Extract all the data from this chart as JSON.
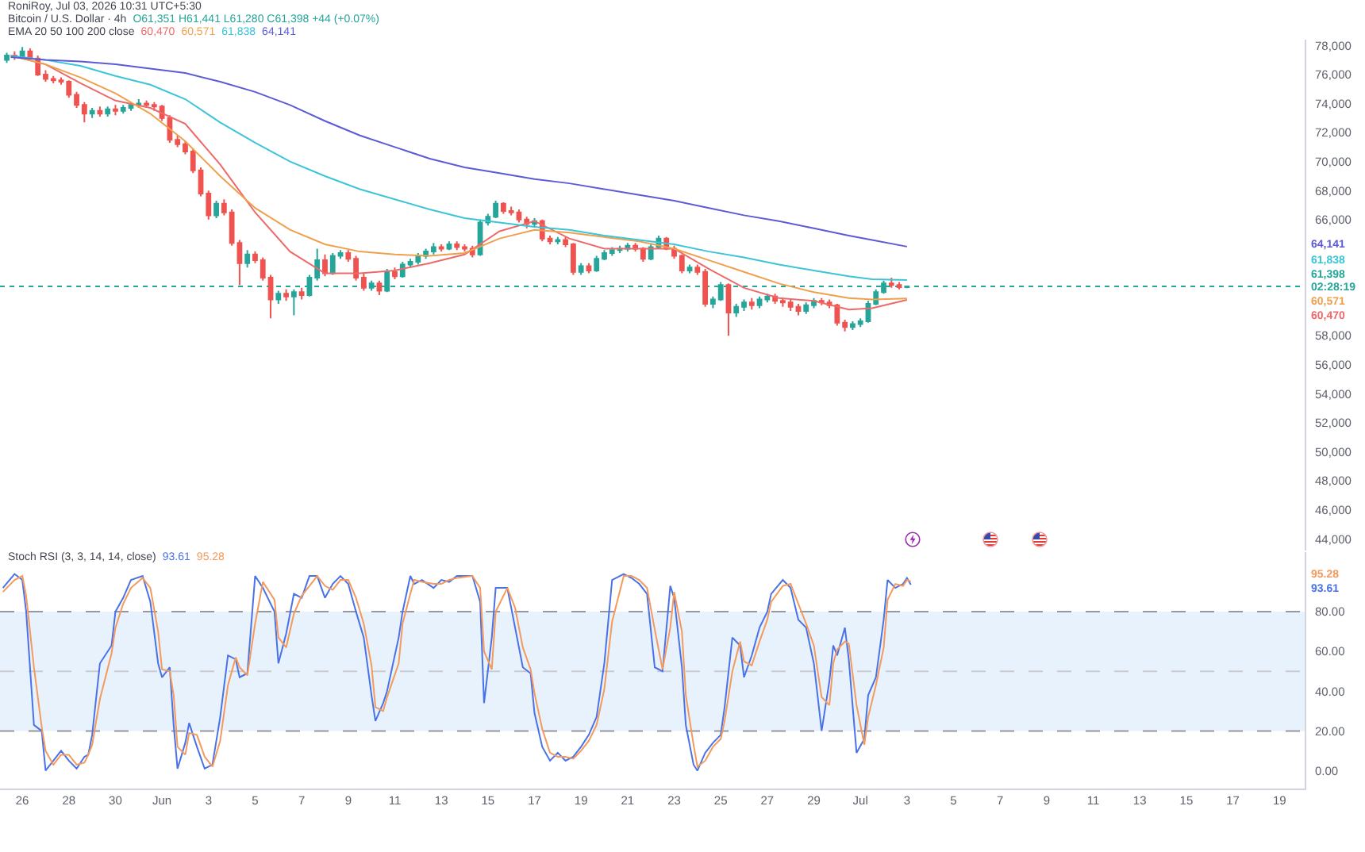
{
  "chart_data": [
    {
      "type": "candlestick",
      "title": "Bitcoin / U.S. Dollar · 4h",
      "subtitle": "O61,351 H61,441 L61,280 C61,398 +44 (+0.07%)",
      "legend_title": "EMA 20 50 100 200 close",
      "tick_labels": "y",
      "annotations": [
        "RoniRoy, Jul 03, 2026 10:31 UTC+5:30"
      ],
      "x": [
        "2026-05-25T08:00",
        "2026-05-25T16:00",
        "2026-05-26T00:00",
        "2026-05-26T08:00",
        "2026-05-26T16:00",
        "2026-05-27T00:00",
        "2026-05-27T08:00",
        "2026-05-27T16:00",
        "2026-05-28T00:00",
        "2026-05-28T08:00",
        "2026-05-28T16:00",
        "2026-05-29T00:00",
        "2026-05-29T08:00",
        "2026-05-29T16:00",
        "2026-05-30T00:00",
        "2026-05-30T08:00",
        "2026-05-30T16:00",
        "2026-05-31T00:00",
        "2026-05-31T08:00",
        "2026-05-31T16:00",
        "2026-06-01T00:00",
        "2026-06-01T08:00",
        "2026-06-01T16:00",
        "2026-06-02T00:00",
        "2026-06-02T08:00",
        "2026-06-02T16:00",
        "2026-06-03T00:00",
        "2026-06-03T08:00",
        "2026-06-03T16:00",
        "2026-06-04T00:00",
        "2026-06-04T08:00",
        "2026-06-04T16:00",
        "2026-06-05T00:00",
        "2026-06-05T08:00",
        "2026-06-05T16:00",
        "2026-06-06T00:00",
        "2026-06-06T08:00",
        "2026-06-06T16:00",
        "2026-06-07T00:00",
        "2026-06-07T08:00",
        "2026-06-07T16:00",
        "2026-06-08T00:00",
        "2026-06-08T08:00",
        "2026-06-08T16:00",
        "2026-06-09T00:00",
        "2026-06-09T08:00",
        "2026-06-09T16:00",
        "2026-06-10T00:00",
        "2026-06-10T08:00",
        "2026-06-10T16:00",
        "2026-06-11T00:00",
        "2026-06-11T08:00",
        "2026-06-11T16:00",
        "2026-06-12T00:00",
        "2026-06-12T08:00",
        "2026-06-12T16:00",
        "2026-06-13T00:00",
        "2026-06-13T08:00",
        "2026-06-13T16:00",
        "2026-06-14T00:00",
        "2026-06-14T08:00",
        "2026-06-14T16:00",
        "2026-06-15T00:00",
        "2026-06-15T08:00",
        "2026-06-15T16:00",
        "2026-06-16T00:00",
        "2026-06-16T08:00",
        "2026-06-16T16:00",
        "2026-06-17T00:00",
        "2026-06-17T08:00",
        "2026-06-17T16:00",
        "2026-06-18T00:00",
        "2026-06-18T08:00",
        "2026-06-18T16:00",
        "2026-06-19T00:00",
        "2026-06-19T08:00",
        "2026-06-19T16:00",
        "2026-06-20T00:00",
        "2026-06-20T08:00",
        "2026-06-20T16:00",
        "2026-06-21T00:00",
        "2026-06-21T08:00",
        "2026-06-21T16:00",
        "2026-06-22T00:00",
        "2026-06-22T08:00",
        "2026-06-22T16:00",
        "2026-06-23T00:00",
        "2026-06-23T08:00",
        "2026-06-23T16:00",
        "2026-06-24T00:00",
        "2026-06-24T08:00",
        "2026-06-24T16:00",
        "2026-06-25T00:00",
        "2026-06-25T08:00",
        "2026-06-25T16:00",
        "2026-06-26T00:00",
        "2026-06-26T08:00",
        "2026-06-26T16:00",
        "2026-06-27T00:00",
        "2026-06-27T08:00",
        "2026-06-27T16:00",
        "2026-06-28T00:00",
        "2026-06-28T08:00",
        "2026-06-28T16:00",
        "2026-06-29T00:00",
        "2026-06-29T08:00",
        "2026-06-29T16:00",
        "2026-06-30T00:00",
        "2026-06-30T08:00",
        "2026-06-30T16:00",
        "2026-07-01T00:00",
        "2026-07-01T08:00",
        "2026-07-01T16:00",
        "2026-07-02T00:00",
        "2026-07-02T08:00",
        "2026-07-02T16:00",
        "2026-07-03T00:00"
      ],
      "ohlc": [
        [
          77000,
          77500,
          76800,
          77300
        ],
        [
          77300,
          77600,
          77000,
          77200
        ],
        [
          77200,
          77900,
          77100,
          77600
        ],
        [
          77600,
          77800,
          77000,
          77100
        ],
        [
          77100,
          77300,
          75900,
          76000
        ],
        [
          76000,
          76300,
          75500,
          75700
        ],
        [
          75700,
          75900,
          75400,
          75600
        ],
        [
          75600,
          75800,
          75300,
          75500
        ],
        [
          75500,
          75600,
          74400,
          74600
        ],
        [
          74600,
          74800,
          73700,
          73900
        ],
        [
          73900,
          74100,
          72700,
          73300
        ],
        [
          73300,
          73700,
          73000,
          73500
        ],
        [
          73500,
          73800,
          73100,
          73300
        ],
        [
          73300,
          73800,
          73100,
          73600
        ],
        [
          73600,
          73900,
          73200,
          73500
        ],
        [
          73500,
          73900,
          73300,
          73700
        ],
        [
          73700,
          74100,
          73500,
          73900
        ],
        [
          73900,
          74300,
          73700,
          74000
        ],
        [
          74000,
          74200,
          73700,
          73900
        ],
        [
          73900,
          74100,
          73500,
          73800
        ],
        [
          73800,
          73900,
          72800,
          73000
        ],
        [
          73000,
          73200,
          71300,
          71500
        ],
        [
          71500,
          71800,
          71000,
          71200
        ],
        [
          71200,
          71400,
          70500,
          70700
        ],
        [
          70700,
          70900,
          69200,
          69400
        ],
        [
          69400,
          69600,
          67600,
          67800
        ],
        [
          67800,
          68000,
          66000,
          66300
        ],
        [
          66300,
          67300,
          66100,
          67100
        ],
        [
          67100,
          67400,
          66300,
          66500
        ],
        [
          66500,
          66700,
          64200,
          64400
        ],
        [
          64400,
          64600,
          61500,
          63000
        ],
        [
          63000,
          63900,
          62700,
          63600
        ],
        [
          63600,
          63800,
          63000,
          63200
        ],
        [
          63200,
          63400,
          61800,
          62000
        ],
        [
          62000,
          62200,
          59200,
          60500
        ],
        [
          60500,
          61100,
          60200,
          60900
        ],
        [
          60900,
          61200,
          60400,
          60700
        ],
        [
          60700,
          61200,
          59400,
          61000
        ],
        [
          61000,
          61300,
          60500,
          60800
        ],
        [
          60800,
          62200,
          60700,
          62000
        ],
        [
          62000,
          64000,
          61800,
          63200
        ],
        [
          63200,
          63600,
          62100,
          62300
        ],
        [
          62300,
          63700,
          62200,
          63500
        ],
        [
          63500,
          63900,
          63300,
          63700
        ],
        [
          63700,
          63900,
          63100,
          63300
        ],
        [
          63300,
          63500,
          61800,
          62000
        ],
        [
          62000,
          62300,
          61100,
          61300
        ],
        [
          61300,
          61800,
          61100,
          61600
        ],
        [
          61600,
          61800,
          60800,
          61100
        ],
        [
          61100,
          62600,
          61000,
          62400
        ],
        [
          62400,
          62700,
          61900,
          62100
        ],
        [
          62100,
          63100,
          62000,
          62900
        ],
        [
          62900,
          63300,
          62700,
          63100
        ],
        [
          63100,
          63700,
          62900,
          63500
        ],
        [
          63500,
          64000,
          63300,
          63800
        ],
        [
          63800,
          64400,
          63600,
          64100
        ],
        [
          64100,
          64300,
          63800,
          64000
        ],
        [
          64000,
          64500,
          63900,
          64300
        ],
        [
          64300,
          64500,
          63900,
          64100
        ],
        [
          64100,
          64300,
          63800,
          64000
        ],
        [
          64000,
          64200,
          63400,
          63600
        ],
        [
          63600,
          66000,
          63500,
          65800
        ],
        [
          65800,
          66400,
          65600,
          66200
        ],
        [
          66200,
          67300,
          66100,
          67100
        ],
        [
          67100,
          67200,
          66400,
          66600
        ],
        [
          66600,
          66900,
          66300,
          66500
        ],
        [
          66500,
          66700,
          65800,
          66000
        ],
        [
          66000,
          66200,
          65400,
          65700
        ],
        [
          65700,
          66100,
          65500,
          65900
        ],
        [
          65900,
          66000,
          64500,
          64700
        ],
        [
          64700,
          64900,
          64300,
          64500
        ],
        [
          64500,
          64800,
          64300,
          64600
        ],
        [
          64600,
          64800,
          64100,
          64300
        ],
        [
          64300,
          64400,
          62200,
          62400
        ],
        [
          62400,
          63000,
          62200,
          62800
        ],
        [
          62800,
          63000,
          62300,
          62500
        ],
        [
          62500,
          63500,
          62400,
          63300
        ],
        [
          63300,
          63900,
          63200,
          63700
        ],
        [
          63700,
          64100,
          63500,
          63900
        ],
        [
          63900,
          64200,
          63700,
          64000
        ],
        [
          64000,
          64400,
          63800,
          64200
        ],
        [
          64200,
          64400,
          63800,
          64000
        ],
        [
          64000,
          64100,
          63100,
          63300
        ],
        [
          63300,
          64300,
          63200,
          64100
        ],
        [
          64100,
          64900,
          64000,
          64700
        ],
        [
          64700,
          64800,
          63900,
          64000
        ],
        [
          64000,
          64200,
          63300,
          63500
        ],
        [
          63500,
          63600,
          62300,
          62500
        ],
        [
          62500,
          62900,
          62300,
          62700
        ],
        [
          62700,
          62900,
          62200,
          62400
        ],
        [
          62400,
          62600,
          60000,
          60200
        ],
        [
          60200,
          60700,
          59900,
          60500
        ],
        [
          60500,
          61700,
          60400,
          61500
        ],
        [
          61500,
          61600,
          58000,
          59600
        ],
        [
          59600,
          60200,
          59300,
          60000
        ],
        [
          60000,
          60500,
          59700,
          60300
        ],
        [
          60300,
          60600,
          59800,
          60100
        ],
        [
          60100,
          60700,
          59900,
          60500
        ],
        [
          60500,
          60900,
          60300,
          60700
        ],
        [
          60700,
          60900,
          60200,
          60400
        ],
        [
          60400,
          60600,
          60000,
          60300
        ],
        [
          60300,
          60500,
          59700,
          60000
        ],
        [
          60000,
          60200,
          59400,
          59700
        ],
        [
          59700,
          60300,
          59500,
          60100
        ],
        [
          60100,
          60600,
          59900,
          60400
        ],
        [
          60400,
          60600,
          60100,
          60300
        ],
        [
          60300,
          60500,
          59900,
          60100
        ],
        [
          60100,
          60200,
          58700,
          58900
        ],
        [
          58900,
          59100,
          58300,
          58600
        ],
        [
          58600,
          59000,
          58400,
          58800
        ],
        [
          58800,
          59200,
          58600,
          59000
        ],
        [
          59000,
          60400,
          58900,
          60200
        ],
        [
          60200,
          61200,
          60100,
          61000
        ],
        [
          61000,
          61800,
          60900,
          61600
        ],
        [
          61600,
          62000,
          61300,
          61500
        ],
        [
          61500,
          61700,
          61200,
          61351
        ],
        [
          61351,
          61441,
          61280,
          61398
        ]
      ],
      "colors": [
        "#26a69a",
        "#ef5350",
        "#26a69a",
        "#ef5350",
        "#ef5350",
        "#ef5350",
        "#ef5350",
        "#ef5350",
        "#ef5350",
        "#ef5350",
        "#ef5350",
        "#26a69a",
        "#ef5350",
        "#26a69a",
        "#ef5350",
        "#26a69a",
        "#26a69a",
        "#26a69a",
        "#ef5350",
        "#ef5350",
        "#ef5350",
        "#ef5350",
        "#ef5350",
        "#ef5350",
        "#ef5350",
        "#ef5350",
        "#ef5350",
        "#26a69a",
        "#ef5350",
        "#ef5350",
        "#ef5350",
        "#26a69a",
        "#ef5350",
        "#ef5350",
        "#ef5350",
        "#26a69a",
        "#ef5350",
        "#26a69a",
        "#ef5350",
        "#26a69a",
        "#26a69a",
        "#ef5350",
        "#26a69a",
        "#26a69a",
        "#ef5350",
        "#ef5350",
        "#ef5350",
        "#26a69a",
        "#ef5350",
        "#26a69a",
        "#ef5350",
        "#26a69a",
        "#26a69a",
        "#26a69a",
        "#26a69a",
        "#26a69a",
        "#ef5350",
        "#26a69a",
        "#ef5350",
        "#ef5350",
        "#ef5350",
        "#26a69a",
        "#26a69a",
        "#26a69a",
        "#ef5350",
        "#ef5350",
        "#ef5350",
        "#ef5350",
        "#26a69a",
        "#ef5350",
        "#ef5350",
        "#26a69a",
        "#ef5350",
        "#ef5350",
        "#26a69a",
        "#ef5350",
        "#26a69a",
        "#26a69a",
        "#26a69a",
        "#26a69a",
        "#26a69a",
        "#ef5350",
        "#ef5350",
        "#26a69a",
        "#26a69a",
        "#ef5350",
        "#ef5350",
        "#ef5350",
        "#26a69a",
        "#ef5350",
        "#ef5350",
        "#26a69a",
        "#26a69a",
        "#ef5350",
        "#26a69a",
        "#26a69a",
        "#ef5350",
        "#26a69a",
        "#26a69a",
        "#ef5350",
        "#ef5350",
        "#ef5350",
        "#ef5350",
        "#26a69a",
        "#26a69a",
        "#ef5350",
        "#ef5350",
        "#ef5350",
        "#ef5350",
        "#26a69a",
        "#26a69a",
        "#26a69a",
        "#26a69a",
        "#26a69a",
        "#ef5350",
        "#ef5350",
        "#26a69a"
      ],
      "series": [
        {
          "type": "line",
          "name": "60,470",
          "color": "#ee6a6a",
          "x": [
            "2026-05-25T12:00",
            "2026-05-27T00:00",
            "2026-05-28T12:00",
            "2026-05-30T00:00",
            "2026-05-31T12:00",
            "2026-06-02T00:00",
            "2026-06-03T12:00",
            "2026-06-05T00:00",
            "2026-06-06T12:00",
            "2026-06-08T00:00",
            "2026-06-09T12:00",
            "2026-06-11T00:00",
            "2026-06-12T12:00",
            "2026-06-14T00:00",
            "2026-06-15T12:00",
            "2026-06-17T00:00",
            "2026-06-18T12:00",
            "2026-06-20T00:00",
            "2026-06-21T12:00",
            "2026-06-23T00:00",
            "2026-06-24T12:00",
            "2026-06-26T00:00",
            "2026-06-27T12:00",
            "2026-06-29T00:00",
            "2026-06-30T12:00",
            "2026-07-01T12:00",
            "2026-07-03T00:00"
          ],
          "values": [
            77300,
            76700,
            75400,
            74200,
            73700,
            72600,
            69800,
            66500,
            63800,
            62300,
            62300,
            62500,
            63000,
            63600,
            65200,
            65900,
            64700,
            64000,
            64000,
            64000,
            62600,
            61300,
            60600,
            60400,
            59800,
            59900,
            60470
          ]
        },
        {
          "type": "line",
          "name": "60,571",
          "color": "#f0a04c",
          "x": [
            "2026-05-25T12:00",
            "2026-05-27T00:00",
            "2026-05-28T12:00",
            "2026-05-30T00:00",
            "2026-05-31T12:00",
            "2026-06-02T00:00",
            "2026-06-03T12:00",
            "2026-06-05T00:00",
            "2026-06-06T12:00",
            "2026-06-08T00:00",
            "2026-06-09T12:00",
            "2026-06-11T00:00",
            "2026-06-12T12:00",
            "2026-06-14T00:00",
            "2026-06-15T12:00",
            "2026-06-17T00:00",
            "2026-06-18T12:00",
            "2026-06-20T00:00",
            "2026-06-21T12:00",
            "2026-06-23T00:00",
            "2026-06-24T12:00",
            "2026-06-26T00:00",
            "2026-06-27T12:00",
            "2026-06-29T00:00",
            "2026-06-30T12:00",
            "2026-07-01T12:00",
            "2026-07-03T00:00"
          ],
          "values": [
            77300,
            76700,
            75800,
            74700,
            73300,
            71400,
            69000,
            66800,
            65300,
            64300,
            63800,
            63600,
            63500,
            63700,
            64700,
            65300,
            65100,
            64800,
            64500,
            64000,
            63200,
            62400,
            61600,
            61000,
            60600,
            60500,
            60571
          ]
        },
        {
          "type": "line",
          "name": "61,838",
          "color": "#3cc4d8",
          "x": [
            "2026-05-25T12:00",
            "2026-05-27T00:00",
            "2026-05-28T12:00",
            "2026-05-30T00:00",
            "2026-05-31T12:00",
            "2026-06-02T00:00",
            "2026-06-03T12:00",
            "2026-06-05T00:00",
            "2026-06-06T12:00",
            "2026-06-08T00:00",
            "2026-06-09T12:00",
            "2026-06-11T00:00",
            "2026-06-12T12:00",
            "2026-06-14T00:00",
            "2026-06-15T12:00",
            "2026-06-17T00:00",
            "2026-06-18T12:00",
            "2026-06-20T00:00",
            "2026-06-21T12:00",
            "2026-06-23T00:00",
            "2026-06-24T12:00",
            "2026-06-26T00:00",
            "2026-06-27T12:00",
            "2026-06-29T00:00",
            "2026-06-30T12:00",
            "2026-07-01T12:00",
            "2026-07-03T00:00"
          ],
          "values": [
            77300,
            77000,
            76600,
            75900,
            75300,
            74300,
            72700,
            71300,
            70000,
            69000,
            68100,
            67400,
            66700,
            66100,
            65800,
            65500,
            65300,
            64900,
            64600,
            64300,
            63800,
            63400,
            62900,
            62500,
            62100,
            61900,
            61838
          ]
        },
        {
          "type": "line",
          "name": "64,141",
          "color": "#5b5bd6",
          "x": [
            "2026-05-25T12:00",
            "2026-05-27T00:00",
            "2026-05-28T12:00",
            "2026-05-30T00:00",
            "2026-05-31T12:00",
            "2026-06-02T00:00",
            "2026-06-03T12:00",
            "2026-06-05T00:00",
            "2026-06-06T12:00",
            "2026-06-08T00:00",
            "2026-06-09T12:00",
            "2026-06-11T00:00",
            "2026-06-12T12:00",
            "2026-06-14T00:00",
            "2026-06-15T12:00",
            "2026-06-17T00:00",
            "2026-06-18T12:00",
            "2026-06-20T00:00",
            "2026-06-21T12:00",
            "2026-06-23T00:00",
            "2026-06-24T12:00",
            "2026-06-26T00:00",
            "2026-06-27T12:00",
            "2026-06-29T00:00",
            "2026-06-30T12:00",
            "2026-07-01T12:00",
            "2026-07-03T00:00"
          ],
          "values": [
            77200,
            77000,
            76900,
            76700,
            76400,
            76100,
            75500,
            74800,
            73900,
            72800,
            71800,
            71000,
            70200,
            69600,
            69200,
            68800,
            68500,
            68100,
            67700,
            67300,
            66800,
            66300,
            65900,
            65400,
            64900,
            64600,
            64141
          ]
        }
      ],
      "xlim": [
        "2026-05-25T01:00",
        "2026-07-20T02:00"
      ],
      "ylim": [
        43200,
        78400
      ],
      "yticks": [
        {
          "value": 44000,
          "label": "44,000"
        },
        {
          "value": 46000,
          "label": "46,000"
        },
        {
          "value": 48000,
          "label": "48,000"
        },
        {
          "value": 50000,
          "label": "50,000"
        },
        {
          "value": 52000,
          "label": "52,000"
        },
        {
          "value": 54000,
          "label": "54,000"
        },
        {
          "value": 56000,
          "label": "56,000"
        },
        {
          "value": 58000,
          "label": "58,000"
        },
        {
          "value": 66000,
          "label": "66,000"
        },
        {
          "value": 68000,
          "label": "68,000"
        },
        {
          "value": 70000,
          "label": "70,000"
        },
        {
          "value": 72000,
          "label": "72,000"
        },
        {
          "value": 74000,
          "label": "74,000"
        },
        {
          "value": 76000,
          "label": "76,000"
        },
        {
          "value": 78000,
          "label": "78,000"
        }
      ],
      "ref_lines": [
        {
          "axis": "y",
          "value": 61398,
          "label": "61,398\n02:28:19",
          "color": "#26a69a",
          "line_style": "dotted"
        }
      ]
    },
    {
      "type": "line",
      "title": "Stoch RSI (3, 3, 14, 14, close)",
      "x": [
        "2026-05-25T04:00",
        "2026-05-25T16:00",
        "2026-05-26T00:00",
        "2026-05-26T04:00",
        "2026-05-26T12:00",
        "2026-05-26T20:00",
        "2026-05-27T00:00",
        "2026-05-27T08:00",
        "2026-05-27T16:00",
        "2026-05-28T00:00",
        "2026-05-28T08:00",
        "2026-05-28T16:00",
        "2026-05-28T20:00",
        "2026-05-29T00:00",
        "2026-05-29T08:00",
        "2026-05-29T20:00",
        "2026-05-30T00:00",
        "2026-05-30T08:00",
        "2026-05-30T16:00",
        "2026-05-31T04:00",
        "2026-05-31T12:00",
        "2026-05-31T20:00",
        "2026-06-01T00:00",
        "2026-06-01T08:00",
        "2026-06-01T12:00",
        "2026-06-01T16:00",
        "2026-06-02T00:00",
        "2026-06-02T04:00",
        "2026-06-02T12:00",
        "2026-06-02T20:00",
        "2026-06-03T04:00",
        "2026-06-03T12:00",
        "2026-06-03T20:00",
        "2026-06-04T04:00",
        "2026-06-04T08:00",
        "2026-06-04T16:00",
        "2026-06-05T00:00",
        "2026-06-05T08:00",
        "2026-06-05T20:00",
        "2026-06-06T00:00",
        "2026-06-06T08:00",
        "2026-06-06T16:00",
        "2026-06-07T00:00",
        "2026-06-07T08:00",
        "2026-06-07T16:00",
        "2026-06-08T00:00",
        "2026-06-08T08:00",
        "2026-06-08T16:00",
        "2026-06-09T00:00",
        "2026-06-09T08:00",
        "2026-06-09T16:00",
        "2026-06-10T00:00",
        "2026-06-10T04:00",
        "2026-06-10T12:00",
        "2026-06-10T16:00",
        "2026-06-11T04:00",
        "2026-06-11T08:00",
        "2026-06-11T16:00",
        "2026-06-11T20:00",
        "2026-06-12T04:00",
        "2026-06-12T16:00",
        "2026-06-13T00:00",
        "2026-06-13T08:00",
        "2026-06-13T16:00",
        "2026-06-14T08:00",
        "2026-06-14T16:00",
        "2026-06-14T20:00",
        "2026-06-15T04:00",
        "2026-06-15T08:00",
        "2026-06-15T20:00",
        "2026-06-16T04:00",
        "2026-06-16T12:00",
        "2026-06-16T20:00",
        "2026-06-17T00:00",
        "2026-06-17T08:00",
        "2026-06-17T16:00",
        "2026-06-18T00:00",
        "2026-06-18T08:00",
        "2026-06-18T16:00",
        "2026-06-19T00:00",
        "2026-06-19T08:00",
        "2026-06-19T16:00",
        "2026-06-20T00:00",
        "2026-06-20T08:00",
        "2026-06-20T20:00",
        "2026-06-21T04:00",
        "2026-06-21T12:00",
        "2026-06-21T20:00",
        "2026-06-22T04:00",
        "2026-06-22T12:00",
        "2026-06-22T20:00",
        "2026-06-23T00:00",
        "2026-06-23T08:00",
        "2026-06-23T12:00",
        "2026-06-23T20:00",
        "2026-06-24T00:00",
        "2026-06-24T08:00",
        "2026-06-24T16:00",
        "2026-06-25T00:00",
        "2026-06-25T04:00",
        "2026-06-25T12:00",
        "2026-06-25T20:00",
        "2026-06-26T00:00",
        "2026-06-26T08:00",
        "2026-06-26T16:00",
        "2026-06-27T00:00",
        "2026-06-27T04:00",
        "2026-06-27T16:00",
        "2026-06-28T00:00",
        "2026-06-28T08:00",
        "2026-06-28T16:00",
        "2026-06-29T00:00",
        "2026-06-29T08:00",
        "2026-06-29T16:00",
        "2026-06-29T20:00",
        "2026-06-30T00:00",
        "2026-06-30T08:00",
        "2026-06-30T12:00",
        "2026-06-30T20:00",
        "2026-07-01T04:00",
        "2026-07-01T08:00",
        "2026-07-01T16:00",
        "2026-07-02T00:00",
        "2026-07-02T04:00",
        "2026-07-02T12:00",
        "2026-07-02T20:00",
        "2026-07-03T00:00",
        "2026-07-03T04:00"
      ],
      "series": [
        {
          "name": "93.61",
          "color": "#4a72e8",
          "values": [
            92,
            99,
            96,
            80,
            23,
            20,
            0,
            5,
            10,
            5,
            1,
            7,
            8,
            18,
            54,
            63,
            80,
            87,
            96,
            98,
            85,
            54,
            47,
            52,
            23,
            1,
            14,
            24,
            12,
            1,
            3,
            27,
            58,
            56,
            47,
            49,
            98,
            92,
            80,
            54,
            69,
            89,
            87,
            98,
            98,
            87,
            94,
            98,
            94,
            80,
            67,
            38,
            25,
            34,
            40,
            67,
            80,
            98,
            94,
            96,
            92,
            96,
            95,
            98,
            98,
            85,
            34,
            67,
            92,
            92,
            72,
            52,
            49,
            29,
            12,
            5,
            9,
            5,
            7,
            12,
            18,
            27,
            54,
            96,
            99,
            97,
            94,
            89,
            52,
            50,
            93,
            87,
            52,
            23,
            3,
            0,
            9,
            14,
            18,
            32,
            67,
            63,
            47,
            58,
            72,
            80,
            89,
            96,
            92,
            76,
            72,
            54,
            20,
            45,
            63,
            58,
            72,
            56,
            9,
            16,
            38,
            47,
            76,
            96,
            92,
            94,
            97,
            93.61
          ]
        },
        {
          "name": "95.28",
          "color": "#f39a5c",
          "values": [
            90,
            96,
            98,
            88,
            52,
            22,
            10,
            3,
            8,
            8,
            3,
            4,
            8,
            13,
            36,
            59,
            72,
            84,
            92,
            97,
            92,
            70,
            51,
            50,
            38,
            12,
            8,
            19,
            18,
            7,
            2,
            15,
            43,
            57,
            52,
            48,
            74,
            95,
            86,
            67,
            62,
            79,
            88,
            93,
            98,
            93,
            91,
            96,
            96,
            87,
            74,
            53,
            32,
            30,
            37,
            54,
            74,
            89,
            96,
            95,
            94,
            94,
            96,
            97,
            98,
            92,
            60,
            51,
            80,
            92,
            82,
            62,
            51,
            39,
            21,
            9,
            7,
            7,
            6,
            10,
            15,
            23,
            41,
            75,
            98,
            98,
            96,
            92,
            71,
            51,
            72,
            90,
            70,
            38,
            13,
            2,
            5,
            12,
            16,
            25,
            50,
            65,
            55,
            53,
            65,
            76,
            85,
            93,
            94,
            84,
            74,
            63,
            37,
            33,
            54,
            61,
            65,
            64,
            33,
            13,
            27,
            43,
            62,
            86,
            94,
            93,
            96,
            95.28
          ]
        }
      ],
      "xlim": [
        "2026-05-25T01:00",
        "2026-07-20T02:00"
      ],
      "xticks": [
        {
          "value": "2026-05-26",
          "label": "26"
        },
        {
          "value": "2026-05-28",
          "label": "28"
        },
        {
          "value": "2026-05-30",
          "label": "30"
        },
        {
          "value": "2026-06-01",
          "label": "Jun"
        },
        {
          "value": "2026-06-03",
          "label": "3"
        },
        {
          "value": "2026-06-05",
          "label": "5"
        },
        {
          "value": "2026-06-07",
          "label": "7"
        },
        {
          "value": "2026-06-09",
          "label": "9"
        },
        {
          "value": "2026-06-11",
          "label": "11"
        },
        {
          "value": "2026-06-13",
          "label": "13"
        },
        {
          "value": "2026-06-15",
          "label": "15"
        },
        {
          "value": "2026-06-17",
          "label": "17"
        },
        {
          "value": "2026-06-19",
          "label": "19"
        },
        {
          "value": "2026-06-21",
          "label": "21"
        },
        {
          "value": "2026-06-23",
          "label": "23"
        },
        {
          "value": "2026-06-25",
          "label": "25"
        },
        {
          "value": "2026-06-27",
          "label": "27"
        },
        {
          "value": "2026-06-29",
          "label": "29"
        },
        {
          "value": "2026-07-01",
          "label": "Jul"
        },
        {
          "value": "2026-07-03",
          "label": "3"
        },
        {
          "value": "2026-07-05",
          "label": "5"
        },
        {
          "value": "2026-07-07",
          "label": "7"
        },
        {
          "value": "2026-07-09",
          "label": "9"
        },
        {
          "value": "2026-07-11",
          "label": "11"
        },
        {
          "value": "2026-07-13",
          "label": "13"
        },
        {
          "value": "2026-07-15",
          "label": "15"
        },
        {
          "value": "2026-07-17",
          "label": "17"
        },
        {
          "value": "2026-07-19",
          "label": "19"
        }
      ],
      "ylim": [
        -9,
        110
      ],
      "yticks": [
        {
          "value": 0,
          "label": "0.00"
        },
        {
          "value": 20,
          "label": "20.00"
        },
        {
          "value": 40,
          "label": "40.00"
        },
        {
          "value": 60,
          "label": "60.00"
        },
        {
          "value": 80,
          "label": "80.00"
        }
      ],
      "bands": [
        {
          "axis": "y",
          "from": 20,
          "to": 80,
          "color": "#e8f2fc"
        }
      ],
      "ref_lines": [
        {
          "axis": "y",
          "value": 80,
          "color": "#9598a1",
          "line_style": "dashed"
        },
        {
          "axis": "y",
          "value": 50,
          "color": "#c9cbd1",
          "line_style": "dashed"
        },
        {
          "axis": "y",
          "value": 20,
          "color": "#9598a1",
          "line_style": "dashed"
        }
      ]
    }
  ]
}
